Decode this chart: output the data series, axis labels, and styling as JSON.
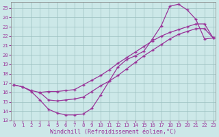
{
  "xlabel": "Windchill (Refroidissement éolien,°C)",
  "bg_color": "#cce8e8",
  "line_color": "#993399",
  "xlim": [
    -0.3,
    23.3
  ],
  "ylim": [
    13,
    25.6
  ],
  "xticks": [
    0,
    1,
    2,
    3,
    4,
    5,
    6,
    7,
    8,
    9,
    10,
    11,
    12,
    13,
    14,
    15,
    16,
    17,
    18,
    19,
    20,
    21,
    22,
    23
  ],
  "yticks": [
    13,
    14,
    15,
    16,
    17,
    18,
    19,
    20,
    21,
    22,
    23,
    24,
    25
  ],
  "line_upper_x": [
    0,
    1,
    2,
    3,
    4,
    5,
    6,
    7,
    8,
    9,
    10,
    11,
    12,
    13,
    14,
    15,
    16,
    17,
    18,
    19,
    20,
    21,
    22,
    23
  ],
  "line_upper_y": [
    16.8,
    16.6,
    16.2,
    16.0,
    16.1,
    16.1,
    16.2,
    16.3,
    16.8,
    17.3,
    17.8,
    18.4,
    19.1,
    19.7,
    20.3,
    20.9,
    21.5,
    22.0,
    22.4,
    22.7,
    23.0,
    23.3,
    23.3,
    21.8
  ],
  "line_lower_x": [
    0,
    1,
    2,
    3,
    4,
    5,
    6,
    7,
    8,
    9,
    10,
    11,
    12,
    13,
    14,
    15,
    16,
    17,
    18,
    19,
    20,
    21,
    22,
    23
  ],
  "line_lower_y": [
    16.8,
    16.6,
    16.1,
    15.2,
    14.2,
    13.8,
    13.6,
    13.6,
    13.7,
    14.3,
    15.7,
    17.2,
    18.7,
    19.5,
    19.9,
    20.4,
    21.7,
    23.1,
    25.2,
    25.4,
    24.8,
    23.8,
    21.7,
    21.8
  ],
  "line_mid_x": [
    3,
    4,
    5,
    6,
    7,
    8,
    9,
    10,
    11,
    12,
    13,
    14,
    15,
    16,
    17,
    18,
    19,
    20,
    21,
    22,
    23
  ],
  "line_mid_y": [
    16.0,
    15.2,
    15.1,
    15.2,
    15.3,
    15.5,
    16.1,
    16.7,
    17.2,
    17.8,
    18.5,
    19.2,
    19.9,
    20.5,
    21.1,
    21.7,
    22.2,
    22.5,
    22.8,
    22.8,
    21.8
  ],
  "font_family": "monospace",
  "tick_fontsize": 5.2,
  "label_fontsize": 6.0
}
